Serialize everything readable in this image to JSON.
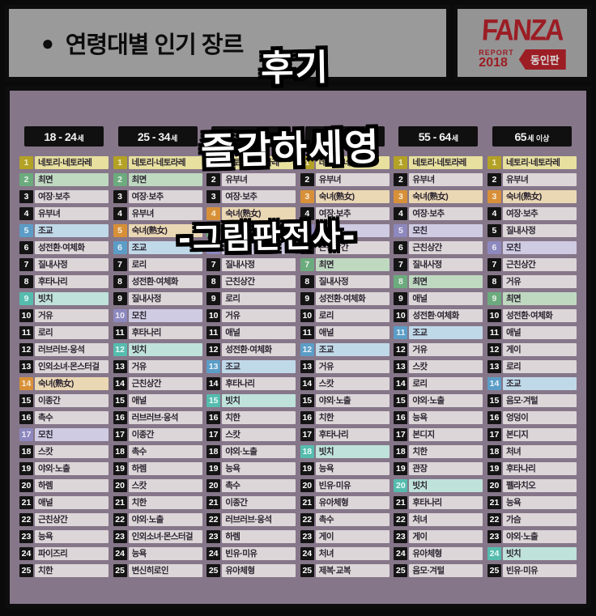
{
  "header": {
    "bullet": "●",
    "title": "연령대별 인기 장르"
  },
  "logo": {
    "brand": "FANZA",
    "report_word": "REPORT",
    "report_year": "2018",
    "badge": "동인판",
    "accent_color": "#9c1d24"
  },
  "overlays": {
    "top": "후기",
    "middle": "즐감하세영",
    "signature": "-그림판전사-"
  },
  "colors": {
    "normal": {
      "chip": "#141414",
      "chip_text": "#ffffff",
      "bar": "#dcd6d8"
    },
    "yellow": {
      "chip": "#b3a226",
      "chip_text": "#f0ecc2",
      "bar": "#e7e09f"
    },
    "green": {
      "chip": "#6cab7d",
      "chip_text": "#e8f2e8",
      "bar": "#bfd9c1"
    },
    "blue": {
      "chip": "#5b9dc7",
      "chip_text": "#e8f2f8",
      "bar": "#c0d9e8"
    },
    "teal": {
      "chip": "#55bcae",
      "chip_text": "#eafaf6",
      "bar": "#bfe2da"
    },
    "orange": {
      "chip": "#d89038",
      "chip_text": "#f8ecd8",
      "bar": "#ead8b4"
    },
    "purple": {
      "chip": "#8d88be",
      "chip_text": "#eceaf6",
      "bar": "#cecbe2"
    }
  },
  "chart_data": {
    "type": "table",
    "title": "연령대별 인기 장르 (FANZA REPORT 2018 동인판)",
    "columns": [
      "18-24세",
      "25-34세",
      "35-44세",
      "45-54세",
      "55-64세",
      "65세 이상"
    ],
    "note": "rows are rank 1-25 per age group"
  },
  "columns": [
    {
      "age_main": "18 - 24",
      "age_small": "세",
      "items": [
        {
          "rank": 1,
          "label": "네토리·네토라레",
          "color": "yellow"
        },
        {
          "rank": 2,
          "label": "최면",
          "color": "green"
        },
        {
          "rank": 3,
          "label": "여장·보추",
          "color": "normal"
        },
        {
          "rank": 4,
          "label": "유부녀",
          "color": "normal"
        },
        {
          "rank": 5,
          "label": "조교",
          "color": "blue"
        },
        {
          "rank": 6,
          "label": "성전환·여체화",
          "color": "normal"
        },
        {
          "rank": 7,
          "label": "질내사정",
          "color": "normal"
        },
        {
          "rank": 8,
          "label": "후타나리",
          "color": "normal"
        },
        {
          "rank": 9,
          "label": "빗치",
          "color": "teal"
        },
        {
          "rank": 10,
          "label": "거유",
          "color": "normal"
        },
        {
          "rank": 11,
          "label": "로리",
          "color": "normal"
        },
        {
          "rank": 12,
          "label": "러브러브·응석",
          "color": "normal"
        },
        {
          "rank": 13,
          "label": "인외소녀·몬스터걸",
          "color": "normal"
        },
        {
          "rank": 14,
          "label": "숙녀(熟女)",
          "color": "orange"
        },
        {
          "rank": 15,
          "label": "이종간",
          "color": "normal"
        },
        {
          "rank": 16,
          "label": "촉수",
          "color": "normal"
        },
        {
          "rank": 17,
          "label": "모친",
          "color": "purple"
        },
        {
          "rank": 18,
          "label": "스캇",
          "color": "normal"
        },
        {
          "rank": 19,
          "label": "야외·노출",
          "color": "normal"
        },
        {
          "rank": 20,
          "label": "하렘",
          "color": "normal"
        },
        {
          "rank": 21,
          "label": "애널",
          "color": "normal"
        },
        {
          "rank": 22,
          "label": "근친상간",
          "color": "normal"
        },
        {
          "rank": 23,
          "label": "능욕",
          "color": "normal"
        },
        {
          "rank": 24,
          "label": "파이즈리",
          "color": "normal"
        },
        {
          "rank": 25,
          "label": "치한",
          "color": "normal"
        }
      ]
    },
    {
      "age_main": "25 - 34",
      "age_small": "세",
      "items": [
        {
          "rank": 1,
          "label": "네토리·네토라레",
          "color": "yellow"
        },
        {
          "rank": 2,
          "label": "최면",
          "color": "green"
        },
        {
          "rank": 3,
          "label": "여장·보추",
          "color": "normal"
        },
        {
          "rank": 4,
          "label": "유부녀",
          "color": "normal"
        },
        {
          "rank": 5,
          "label": "숙녀(熟女)",
          "color": "orange"
        },
        {
          "rank": 6,
          "label": "조교",
          "color": "blue"
        },
        {
          "rank": 7,
          "label": "로리",
          "color": "normal"
        },
        {
          "rank": 8,
          "label": "성전환·여체화",
          "color": "normal"
        },
        {
          "rank": 9,
          "label": "질내사정",
          "color": "normal"
        },
        {
          "rank": 10,
          "label": "모친",
          "color": "purple"
        },
        {
          "rank": 11,
          "label": "후타나리",
          "color": "normal"
        },
        {
          "rank": 12,
          "label": "빗치",
          "color": "teal"
        },
        {
          "rank": 13,
          "label": "거유",
          "color": "normal"
        },
        {
          "rank": 14,
          "label": "근친상간",
          "color": "normal"
        },
        {
          "rank": 15,
          "label": "애널",
          "color": "normal"
        },
        {
          "rank": 16,
          "label": "러브러브·응석",
          "color": "normal"
        },
        {
          "rank": 17,
          "label": "이종간",
          "color": "normal"
        },
        {
          "rank": 18,
          "label": "촉수",
          "color": "normal"
        },
        {
          "rank": 19,
          "label": "하렘",
          "color": "normal"
        },
        {
          "rank": 20,
          "label": "스캇",
          "color": "normal"
        },
        {
          "rank": 21,
          "label": "치한",
          "color": "normal"
        },
        {
          "rank": 22,
          "label": "야외·노출",
          "color": "normal"
        },
        {
          "rank": 23,
          "label": "인외소녀·몬스터걸",
          "color": "normal"
        },
        {
          "rank": 24,
          "label": "능욕",
          "color": "normal"
        },
        {
          "rank": 25,
          "label": "변신히로인",
          "color": "normal"
        }
      ]
    },
    {
      "age_main": "35 - 44",
      "age_small": "세",
      "items": [
        {
          "rank": 1,
          "label": "네토리·네토라레",
          "color": "yellow"
        },
        {
          "rank": 2,
          "label": "유부녀",
          "color": "normal"
        },
        {
          "rank": 3,
          "label": "여장·보추",
          "color": "normal"
        },
        {
          "rank": 4,
          "label": "숙녀(熟女)",
          "color": "orange"
        },
        {
          "rank": 5,
          "label": "최면",
          "color": "green"
        },
        {
          "rank": 6,
          "label": "모친",
          "color": "purple"
        },
        {
          "rank": 7,
          "label": "질내사정",
          "color": "normal"
        },
        {
          "rank": 8,
          "label": "근친상간",
          "color": "normal"
        },
        {
          "rank": 9,
          "label": "로리",
          "color": "normal"
        },
        {
          "rank": 10,
          "label": "거유",
          "color": "normal"
        },
        {
          "rank": 11,
          "label": "애널",
          "color": "normal"
        },
        {
          "rank": 12,
          "label": "성전환·여체화",
          "color": "normal"
        },
        {
          "rank": 13,
          "label": "조교",
          "color": "blue"
        },
        {
          "rank": 14,
          "label": "후타나리",
          "color": "normal"
        },
        {
          "rank": 15,
          "label": "빗치",
          "color": "teal"
        },
        {
          "rank": 16,
          "label": "치한",
          "color": "normal"
        },
        {
          "rank": 17,
          "label": "스캇",
          "color": "normal"
        },
        {
          "rank": 18,
          "label": "야외·노출",
          "color": "normal"
        },
        {
          "rank": 19,
          "label": "능욕",
          "color": "normal"
        },
        {
          "rank": 20,
          "label": "촉수",
          "color": "normal"
        },
        {
          "rank": 21,
          "label": "이종간",
          "color": "normal"
        },
        {
          "rank": 22,
          "label": "러브러브·응석",
          "color": "normal"
        },
        {
          "rank": 23,
          "label": "하렘",
          "color": "normal"
        },
        {
          "rank": 24,
          "label": "빈유·미유",
          "color": "normal"
        },
        {
          "rank": 25,
          "label": "유아체형",
          "color": "normal"
        }
      ]
    },
    {
      "age_main": "45 - 54",
      "age_small": "세",
      "items": [
        {
          "rank": 1,
          "label": "네토리·네토라레",
          "color": "yellow"
        },
        {
          "rank": 2,
          "label": "유부녀",
          "color": "normal"
        },
        {
          "rank": 3,
          "label": "숙녀(熟女)",
          "color": "orange"
        },
        {
          "rank": 4,
          "label": "여장·보추",
          "color": "normal"
        },
        {
          "rank": 5,
          "label": "모친",
          "color": "purple"
        },
        {
          "rank": 6,
          "label": "근친상간",
          "color": "normal"
        },
        {
          "rank": 7,
          "label": "최면",
          "color": "green"
        },
        {
          "rank": 8,
          "label": "질내사정",
          "color": "normal"
        },
        {
          "rank": 9,
          "label": "성전환·여체화",
          "color": "normal"
        },
        {
          "rank": 10,
          "label": "로리",
          "color": "normal"
        },
        {
          "rank": 11,
          "label": "애널",
          "color": "normal"
        },
        {
          "rank": 12,
          "label": "조교",
          "color": "blue"
        },
        {
          "rank": 13,
          "label": "거유",
          "color": "normal"
        },
        {
          "rank": 14,
          "label": "스캇",
          "color": "normal"
        },
        {
          "rank": 15,
          "label": "야외·노출",
          "color": "normal"
        },
        {
          "rank": 16,
          "label": "치한",
          "color": "normal"
        },
        {
          "rank": 17,
          "label": "후타나리",
          "color": "normal"
        },
        {
          "rank": 18,
          "label": "빗치",
          "color": "teal"
        },
        {
          "rank": 19,
          "label": "능욕",
          "color": "normal"
        },
        {
          "rank": 20,
          "label": "빈유·미유",
          "color": "normal"
        },
        {
          "rank": 21,
          "label": "유아체형",
          "color": "normal"
        },
        {
          "rank": 22,
          "label": "촉수",
          "color": "normal"
        },
        {
          "rank": 23,
          "label": "게이",
          "color": "normal"
        },
        {
          "rank": 24,
          "label": "처녀",
          "color": "normal"
        },
        {
          "rank": 25,
          "label": "제복·교복",
          "color": "normal"
        }
      ]
    },
    {
      "age_main": "55 - 64",
      "age_small": "세",
      "items": [
        {
          "rank": 1,
          "label": "네토리·네토라레",
          "color": "yellow"
        },
        {
          "rank": 2,
          "label": "유부녀",
          "color": "normal"
        },
        {
          "rank": 3,
          "label": "숙녀(熟女)",
          "color": "orange"
        },
        {
          "rank": 4,
          "label": "여장·보추",
          "color": "normal"
        },
        {
          "rank": 5,
          "label": "모친",
          "color": "purple"
        },
        {
          "rank": 6,
          "label": "근친상간",
          "color": "normal"
        },
        {
          "rank": 7,
          "label": "질내사정",
          "color": "normal"
        },
        {
          "rank": 8,
          "label": "최면",
          "color": "green"
        },
        {
          "rank": 9,
          "label": "애널",
          "color": "normal"
        },
        {
          "rank": 10,
          "label": "성전환·여체화",
          "color": "normal"
        },
        {
          "rank": 11,
          "label": "조교",
          "color": "blue"
        },
        {
          "rank": 12,
          "label": "거유",
          "color": "normal"
        },
        {
          "rank": 13,
          "label": "스캇",
          "color": "normal"
        },
        {
          "rank": 14,
          "label": "로리",
          "color": "normal"
        },
        {
          "rank": 15,
          "label": "야외·노출",
          "color": "normal"
        },
        {
          "rank": 16,
          "label": "능욕",
          "color": "normal"
        },
        {
          "rank": 17,
          "label": "본디지",
          "color": "normal"
        },
        {
          "rank": 18,
          "label": "치한",
          "color": "normal"
        },
        {
          "rank": 19,
          "label": "관장",
          "color": "normal"
        },
        {
          "rank": 20,
          "label": "빗치",
          "color": "teal"
        },
        {
          "rank": 21,
          "label": "후타나리",
          "color": "normal"
        },
        {
          "rank": 22,
          "label": "처녀",
          "color": "normal"
        },
        {
          "rank": 23,
          "label": "게이",
          "color": "normal"
        },
        {
          "rank": 24,
          "label": "유아체형",
          "color": "normal"
        },
        {
          "rank": 25,
          "label": "음모·겨털",
          "color": "normal"
        }
      ]
    },
    {
      "age_main": "65",
      "age_small": "세 이상",
      "items": [
        {
          "rank": 1,
          "label": "네토리·네토라레",
          "color": "yellow"
        },
        {
          "rank": 2,
          "label": "유부녀",
          "color": "normal"
        },
        {
          "rank": 3,
          "label": "숙녀(熟女)",
          "color": "orange"
        },
        {
          "rank": 4,
          "label": "여장·보추",
          "color": "normal"
        },
        {
          "rank": 5,
          "label": "질내사정",
          "color": "normal"
        },
        {
          "rank": 6,
          "label": "모친",
          "color": "purple"
        },
        {
          "rank": 7,
          "label": "근친상간",
          "color": "normal"
        },
        {
          "rank": 8,
          "label": "거유",
          "color": "normal"
        },
        {
          "rank": 9,
          "label": "최면",
          "color": "green"
        },
        {
          "rank": 10,
          "label": "성전환·여체화",
          "color": "normal"
        },
        {
          "rank": 11,
          "label": "애널",
          "color": "normal"
        },
        {
          "rank": 12,
          "label": "게이",
          "color": "normal"
        },
        {
          "rank": 13,
          "label": "로리",
          "color": "normal"
        },
        {
          "rank": 14,
          "label": "조교",
          "color": "blue"
        },
        {
          "rank": 15,
          "label": "음모·겨털",
          "color": "normal"
        },
        {
          "rank": 16,
          "label": "엉덩이",
          "color": "normal"
        },
        {
          "rank": 17,
          "label": "본디지",
          "color": "normal"
        },
        {
          "rank": 18,
          "label": "처녀",
          "color": "normal"
        },
        {
          "rank": 19,
          "label": "후타나리",
          "color": "normal"
        },
        {
          "rank": 20,
          "label": "펠라치오",
          "color": "normal"
        },
        {
          "rank": 21,
          "label": "능욕",
          "color": "normal"
        },
        {
          "rank": 22,
          "label": "가슴",
          "color": "normal"
        },
        {
          "rank": 23,
          "label": "야외·노출",
          "color": "normal"
        },
        {
          "rank": 24,
          "label": "빗치",
          "color": "teal"
        },
        {
          "rank": 25,
          "label": "빈유·미유",
          "color": "normal"
        }
      ]
    }
  ]
}
